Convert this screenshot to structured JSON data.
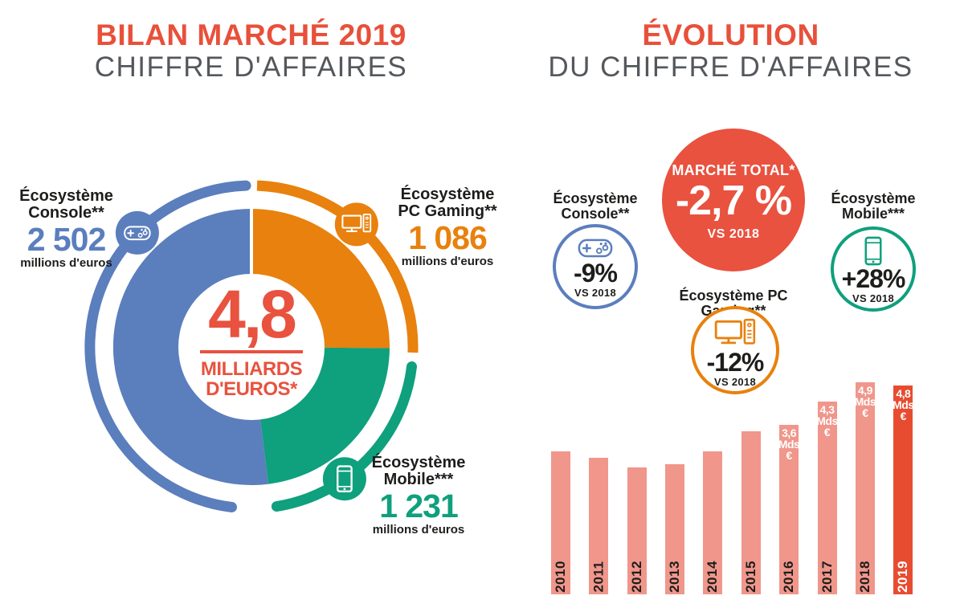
{
  "colors": {
    "red": "#E8503A",
    "red_circle": "#E8523F",
    "blue": "#5B7EBD",
    "orange": "#E8810E",
    "teal": "#0FA07D",
    "salmon": "#F0968B",
    "highlight_red": "#E74C30",
    "gray": "#54585C",
    "ink": "#1D1D1B"
  },
  "left": {
    "title1": "BILAN MARCHÉ 2019",
    "title2": "CHIFFRE D'AFFAIRES",
    "center": {
      "value": "4,8",
      "line1": "MILLIARDS",
      "line2": "D'EUROS*"
    },
    "console": {
      "l1": "Écosystème",
      "l2": "Console**",
      "value": "2 502",
      "unit": "millions d'euros"
    },
    "pc": {
      "l1": "Écosystème",
      "l2": "PC Gaming**",
      "value": "1 086",
      "unit": "millions d'euros"
    },
    "mobile": {
      "l1": "Écosystème",
      "l2": "Mobile***",
      "value": "1 231",
      "unit": "millions d'euros"
    }
  },
  "right": {
    "title1": "ÉVOLUTION",
    "title2": "DU CHIFFRE D'AFFAIRES",
    "total": {
      "label": "MARCHÉ TOTAL*",
      "value": "-2,7 %",
      "vs": "VS 2018"
    },
    "console": {
      "l1": "Écosystème",
      "l2": "Console**",
      "value": "-9%",
      "vs": "VS 2018"
    },
    "mobile": {
      "l1": "Écosystème",
      "l2": "Mobile***",
      "value": "+28%",
      "vs": "VS 2018"
    },
    "pc": {
      "label": "Écosystème PC Gaming**",
      "value": "-12%",
      "vs": "VS 2018"
    }
  },
  "chart_data": [
    {
      "type": "pie",
      "title": "Bilan marché 2019 — chiffre d'affaires",
      "center_label": "4,8 milliards d'euros*",
      "unit": "millions d'euros",
      "direction": "clockwise",
      "start_angle_deg": 0,
      "slices": [
        {
          "label": "Écosystème PC Gaming**",
          "value": 1086,
          "color": "#E8810E"
        },
        {
          "label": "Écosystème Mobile***",
          "value": 1231,
          "color": "#0FA07D"
        },
        {
          "label": "Écosystème Console**",
          "value": 2502,
          "color": "#5B7EBD"
        }
      ]
    },
    {
      "type": "bar",
      "title": "Évolution du chiffre d'affaires",
      "ylabel": "Mds €",
      "categories": [
        "2010",
        "2011",
        "2012",
        "2013",
        "2014",
        "2015",
        "2016",
        "2017",
        "2018",
        "2019"
      ],
      "values": [
        2.8,
        2.6,
        2.3,
        2.4,
        2.8,
        3.4,
        3.6,
        4.3,
        4.9,
        4.8
      ],
      "bar_labels": [
        null,
        null,
        null,
        null,
        null,
        null,
        [
          "3,6",
          "Mds",
          "€"
        ],
        [
          "4,3",
          "Mds",
          "€"
        ],
        [
          "4,9",
          "Mds",
          "€"
        ],
        [
          "4,8",
          "Mds",
          "€"
        ]
      ],
      "bar_color": "#F0968B",
      "highlight_index": 9,
      "highlight_color": "#E74C30",
      "grid": false,
      "legend": false
    }
  ]
}
